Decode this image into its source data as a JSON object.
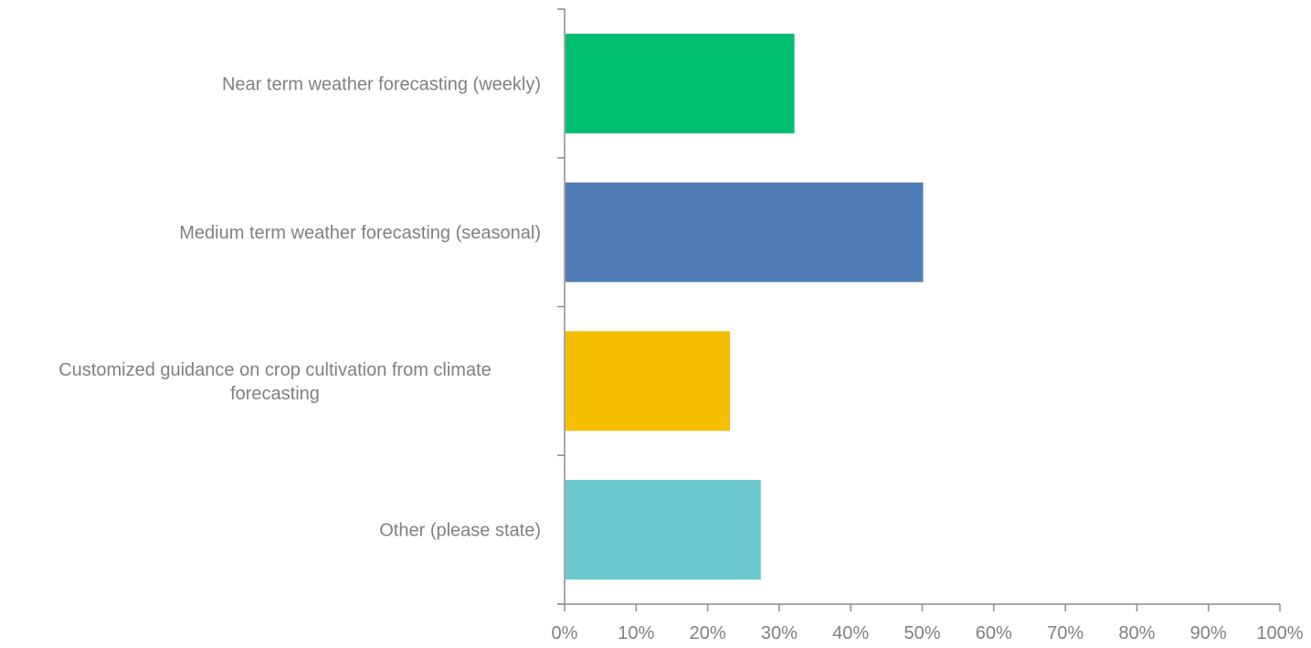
{
  "chart_data": {
    "type": "bar",
    "orientation": "horizontal",
    "categories": [
      [
        "Near term weather forecasting (weekly)"
      ],
      [
        "Medium term weather forecasting (seasonal)"
      ],
      [
        "Customized guidance on crop cultivation from climate",
        "forecasting"
      ],
      [
        "Other (please state)"
      ]
    ],
    "values": [
      32,
      50,
      23,
      27.3
    ],
    "colors": [
      "#00BF6F",
      "#507CB6",
      "#F6BE00",
      "#6BC8CD"
    ],
    "xlim": [
      0,
      100
    ],
    "x_ticks": [
      "0%",
      "10%",
      "20%",
      "30%",
      "40%",
      "50%",
      "60%",
      "70%",
      "80%",
      "90%",
      "100%"
    ],
    "grid": false,
    "legend": "none"
  }
}
